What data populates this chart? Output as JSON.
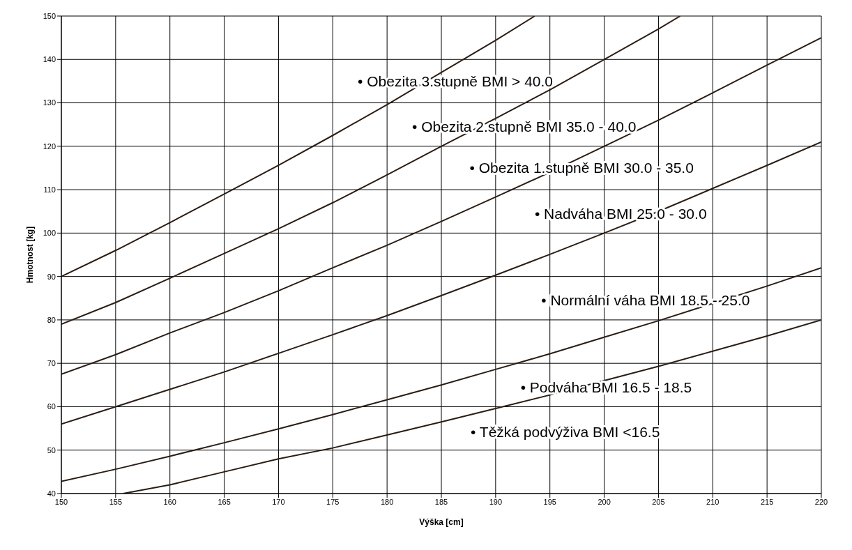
{
  "chart_data": {
    "type": "line",
    "xlabel": "Výška [cm]",
    "ylabel": "Hmotnost  [kg]",
    "xlim": [
      150,
      220
    ],
    "xticks": [
      150,
      155,
      160,
      165,
      170,
      175,
      180,
      185,
      190,
      195,
      200,
      205,
      210,
      215,
      220
    ],
    "ylim": [
      40,
      150
    ],
    "yticks": [
      40,
      50,
      60,
      70,
      80,
      90,
      100,
      110,
      120,
      130,
      140,
      150
    ],
    "grid": true,
    "legend": false,
    "marker": "none",
    "line_style": "solid",
    "series": [
      {
        "color": "#2b1d14",
        "x": [
          155.7,
          160,
          165,
          170,
          175,
          180,
          185,
          190,
          195,
          200,
          205,
          210,
          215,
          220
        ],
        "values": [
          40,
          42,
          45,
          48,
          50.5,
          53.5,
          56.5,
          59.6,
          62.7,
          66,
          69.3,
          72.8,
          76.3,
          80
        ]
      },
      {
        "color": "#2b1d14",
        "x": [
          150,
          155,
          160,
          165,
          170,
          175,
          180,
          185,
          190,
          195,
          200,
          205,
          210,
          215,
          220
        ],
        "values": [
          42.8,
          45.6,
          48.6,
          51.7,
          54.9,
          58.2,
          61.6,
          65,
          68.6,
          72.2,
          76,
          79.8,
          83.8,
          87.8,
          92
        ]
      },
      {
        "color": "#2b1d14",
        "x": [
          150,
          155,
          160,
          165,
          170,
          175,
          180,
          185,
          190,
          195,
          200,
          205,
          210,
          215,
          220
        ],
        "values": [
          56,
          60,
          64,
          68,
          72.3,
          76.6,
          81,
          85.6,
          90.3,
          95.1,
          100,
          105,
          110.3,
          115.6,
          121
        ]
      },
      {
        "color": "#2b1d14",
        "x": [
          150,
          155,
          160,
          165,
          170,
          175,
          180,
          185,
          190,
          195,
          200,
          205,
          210,
          215,
          220
        ],
        "values": [
          67.5,
          72,
          77,
          81.7,
          86.7,
          92,
          97.2,
          102.7,
          108.3,
          114,
          120,
          126,
          132.3,
          138.7,
          145
        ]
      },
      {
        "color": "#2b1d14",
        "x": [
          150,
          155,
          160,
          165,
          170,
          175,
          180,
          185,
          190,
          195,
          200,
          205,
          207
        ],
        "values": [
          79,
          84,
          89.6,
          95.3,
          101,
          107,
          113.4,
          120,
          126.4,
          133,
          140,
          147,
          150
        ]
      },
      {
        "color": "#2b1d14",
        "x": [
          150,
          155,
          160,
          165,
          170,
          175,
          180,
          185,
          190,
          193.6
        ],
        "values": [
          90,
          96,
          102.4,
          109,
          115.6,
          122.5,
          129.6,
          137,
          144.4,
          150
        ]
      }
    ],
    "annotations": [
      "• Obezita 3.stupně BMI > 40.0",
      "• Obezita 2.stupně BMI 35.0 - 40.0",
      "• Obezita 1.stupně BMI 30.0 - 35.0",
      "• Nadváha BMI 25.0 - 30.0",
      "• Normální váha BMI 18.5 - 25.0",
      "• Podváha BMI 16.5 - 18.5",
      "• Těžká  podvýživa BMI <16.5"
    ]
  }
}
